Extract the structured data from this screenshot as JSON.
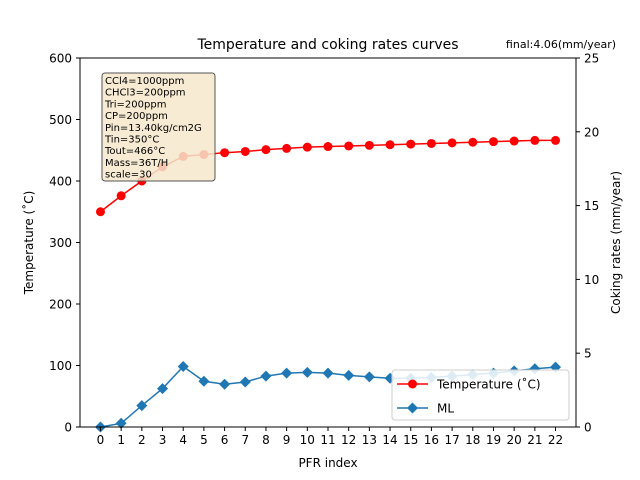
{
  "chart_data": {
    "type": "line",
    "title": "Temperature and coking rates curves",
    "annotation_top_right": "final:4.06(mm/year)",
    "xlabel": "PFR index",
    "ylabel_left": "Temperature ($^\\circ$C)",
    "ylabel_left_display": "Temperature (˚C)",
    "ylabel_right": "Coking rates (mm/year)",
    "x": [
      0,
      1,
      2,
      3,
      4,
      5,
      6,
      7,
      8,
      9,
      10,
      11,
      12,
      13,
      14,
      15,
      16,
      17,
      18,
      19,
      20,
      21,
      22
    ],
    "ylim_left": [
      0,
      600
    ],
    "ylim_right": [
      0,
      25
    ],
    "yticks_left": [
      0,
      100,
      200,
      300,
      400,
      500,
      600
    ],
    "yticks_right": [
      0,
      5,
      10,
      15,
      20,
      25
    ],
    "grid": false,
    "legend_position": "lower-right",
    "series": [
      {
        "name": "Temperature (˚C)",
        "axis": "left",
        "color": "#ff0000",
        "marker": "circle",
        "values": [
          350,
          376,
          400,
          423,
          440,
          443,
          446,
          448,
          451,
          453,
          455,
          456,
          457,
          458,
          459,
          460,
          461,
          462,
          463,
          464,
          465,
          466,
          466
        ]
      },
      {
        "name": "ML",
        "axis": "right",
        "color": "#1f77b4",
        "marker": "diamond",
        "values": [
          0.0,
          0.25,
          1.45,
          2.6,
          4.1,
          3.1,
          2.9,
          3.05,
          3.45,
          3.65,
          3.7,
          3.65,
          3.5,
          3.4,
          3.3,
          3.3,
          3.35,
          3.45,
          3.55,
          3.65,
          3.8,
          3.95,
          4.06
        ]
      }
    ],
    "info_box_lines": [
      "CCl4=1000ppm",
      "CHCl3=200ppm",
      "Tri=200ppm",
      "CP=200ppm",
      "Pin=13.40kg/cm2G",
      "Tin=350°C",
      "Tout=466°C",
      "Mass=36T/H",
      "scale=30"
    ],
    "legend_labels": [
      "Temperature (˚C)",
      "ML"
    ]
  }
}
